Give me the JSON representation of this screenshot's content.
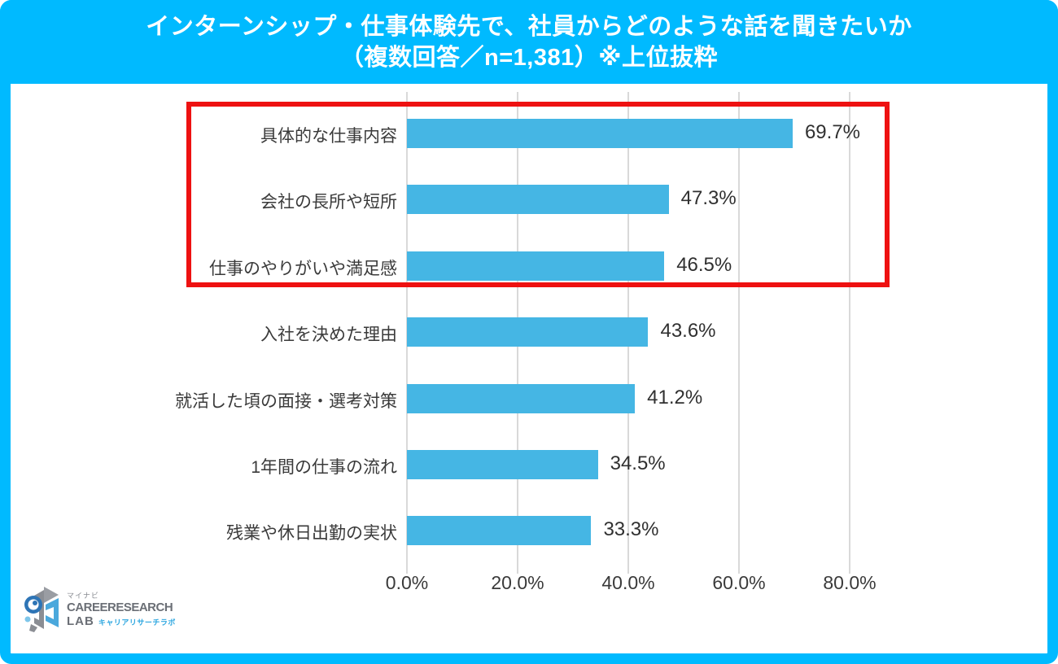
{
  "colors": {
    "accent": "#00baff",
    "bar": "#45b6e4",
    "highlight": "#ee1111",
    "grid": "#d9d9d9",
    "text": "#3a3a3a",
    "title_text": "#ffffff"
  },
  "header": {
    "title_line1": "インターンシップ・仕事体験先で、社員からどのような話を聞きたいか",
    "title_line2": "（複数回答／n=1,381）※上位抜粋"
  },
  "chart_data": {
    "type": "bar",
    "orientation": "horizontal",
    "title": "インターンシップ・仕事体験先で、社員からどのような話を聞きたいか（複数回答／n=1,381）※上位抜粋",
    "categories": [
      "具体的な仕事内容",
      "会社の長所や短所",
      "仕事のやりがいや満足感",
      "入社を決めた理由",
      "就活した頃の面接・選考対策",
      "1年間の仕事の流れ",
      "残業や休日出勤の実状"
    ],
    "values": [
      69.7,
      47.3,
      46.5,
      43.6,
      41.2,
      34.5,
      33.3
    ],
    "value_labels": [
      "69.7%",
      "47.3%",
      "46.5%",
      "43.6%",
      "41.2%",
      "34.5%",
      "33.3%"
    ],
    "x_ticks": [
      "0.0%",
      "20.0%",
      "40.0%",
      "60.0%",
      "80.0%"
    ],
    "x_tick_values": [
      0,
      20,
      40,
      60,
      80
    ],
    "xlim": [
      0,
      88
    ],
    "grid": true,
    "legend": false,
    "highlighted_rows": [
      0,
      1,
      2
    ]
  },
  "logo": {
    "brand_small": "マイナビ",
    "line1": "CAREERESEARCH",
    "line2": "LAB",
    "subtext": "キャリアリサーチラボ"
  }
}
